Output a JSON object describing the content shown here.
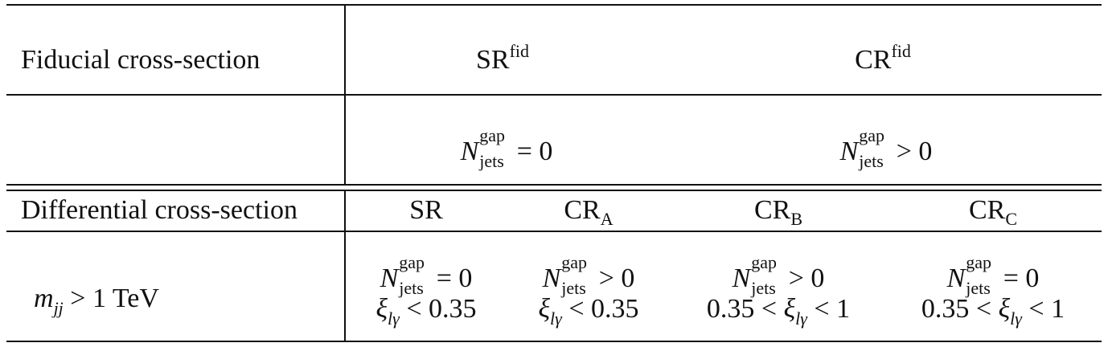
{
  "row1": {
    "label": "Fiducial cross-section",
    "sr_fid": {
      "main": "SR",
      "sup": "fid"
    },
    "cr_fid": {
      "main": "CR",
      "sup": "fid"
    }
  },
  "row2": {
    "sr": {
      "N": "N",
      "sup": "gap",
      "sub": "jets",
      "rel": "= 0"
    },
    "cr": {
      "N": "N",
      "sup": "gap",
      "sub": "jets",
      "rel": "> 0"
    }
  },
  "row3": {
    "label": "Differential cross-section",
    "sr": {
      "main": "SR"
    },
    "cra": {
      "main": "CR",
      "sub": "A"
    },
    "crb": {
      "main": "CR",
      "sub": "B"
    },
    "crc": {
      "main": "CR",
      "sub": "C"
    }
  },
  "row4": {
    "label_var": "m",
    "label_sub": "jj",
    "label_rest": " > 1 TeV",
    "cells": [
      {
        "N": "N",
        "sup": "gap",
        "sub": "jets",
        "rel": "= 0",
        "xi_pre": "",
        "xi": "ξ",
        "xi_sub": "lγ",
        "xi_post": " < 0.35"
      },
      {
        "N": "N",
        "sup": "gap",
        "sub": "jets",
        "rel": "> 0",
        "xi_pre": "",
        "xi": "ξ",
        "xi_sub": "lγ",
        "xi_post": " < 0.35"
      },
      {
        "N": "N",
        "sup": "gap",
        "sub": "jets",
        "rel": "> 0",
        "xi_pre": "0.35 < ",
        "xi": "ξ",
        "xi_sub": "lγ",
        "xi_post": " < 1"
      },
      {
        "N": "N",
        "sup": "gap",
        "sub": "jets",
        "rel": "= 0",
        "xi_pre": "0.35 < ",
        "xi": "ξ",
        "xi_sub": "lγ",
        "xi_post": " < 1"
      }
    ]
  }
}
